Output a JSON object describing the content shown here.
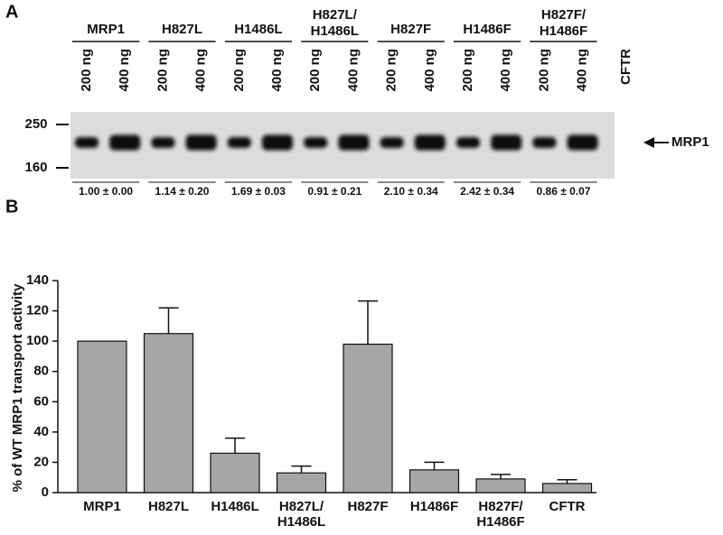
{
  "blot": {
    "label": "A",
    "groups": [
      [
        "MRP1"
      ],
      [
        "H827L"
      ],
      [
        "H1486L"
      ],
      [
        "H827L/",
        "H1486L"
      ],
      [
        "H827F"
      ],
      [
        "H1486F"
      ],
      [
        "H827F/",
        "H1486F"
      ]
    ],
    "lanes": [
      "200 ng",
      "400 ng"
    ],
    "control": "CFTR",
    "markers": [
      "250",
      "160"
    ],
    "arrow_label": "MRP1",
    "quant": [
      "1.00 ± 0.00",
      "1.14 ± 0.20",
      "1.69 ± 0.03",
      "0.91 ± 0.21",
      "2.10 ± 0.34",
      "2.42 ± 0.34",
      "0.86 ± 0.07"
    ]
  },
  "chart_data": {
    "type": "bar",
    "panel_label": "B",
    "y_label": "% of WT MRP1 transport activity",
    "categories": [
      [
        "MRP1"
      ],
      [
        "H827L"
      ],
      [
        "H1486L"
      ],
      [
        "H827L/",
        "H1486L"
      ],
      [
        "H827F"
      ],
      [
        "H1486F"
      ],
      [
        "H827F/",
        "H1486F"
      ],
      [
        "CFTR"
      ]
    ],
    "values": [
      100,
      105,
      26,
      13,
      98,
      15,
      9,
      6
    ],
    "errors": [
      null,
      17,
      10,
      4.5,
      28.5,
      5,
      3,
      2.5
    ],
    "color": "#a6a6a6",
    "ylim": [
      0,
      140
    ],
    "yticks": [
      0,
      20,
      40,
      60,
      80,
      100,
      120,
      140
    ]
  }
}
